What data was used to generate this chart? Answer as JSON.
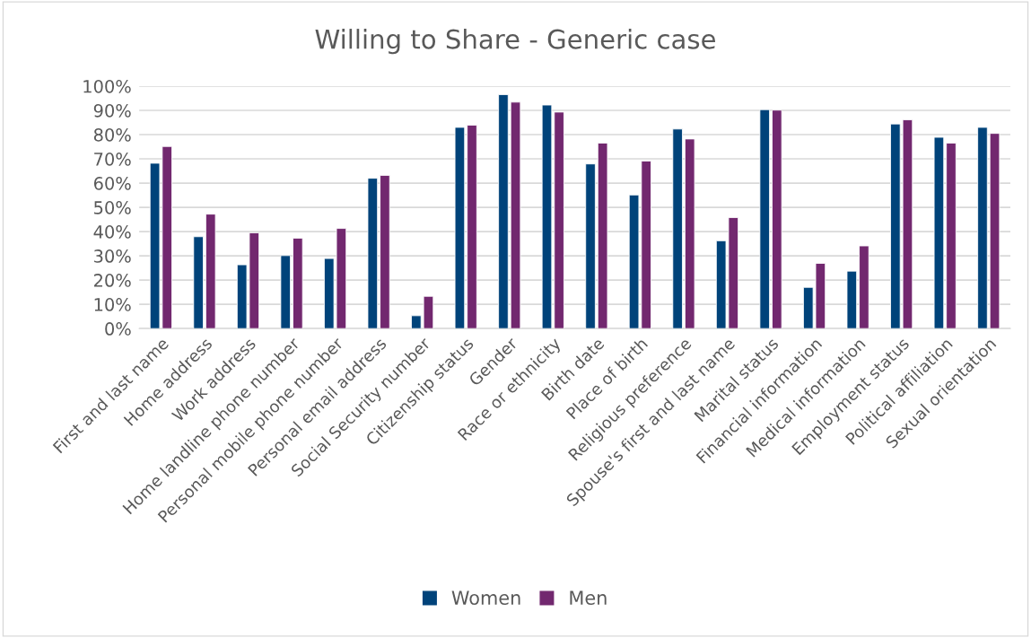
{
  "chart_data": {
    "type": "bar",
    "title": "Willing to Share - Generic case",
    "categories": [
      "First and last name",
      "Home address",
      "Work address",
      "Home landline phone number",
      "Personal mobile phone number",
      "Personal email address",
      "Social Security number",
      "Citizenship status",
      "Gender",
      "Race or ethnicity",
      "Birth date",
      "Place of birth",
      "Religious preference",
      "Spouse's first and last name",
      "Marital status",
      "Financial information",
      "Medical information",
      "Employment status",
      "Political affiliation",
      "Sexual orientation"
    ],
    "series": [
      {
        "name": "Women",
        "color": "#00437a",
        "values": [
          68.2,
          37.9,
          26.3,
          30.1,
          28.9,
          62.0,
          5.3,
          83.0,
          96.5,
          92.2,
          67.9,
          55.1,
          82.3,
          36.2,
          90.3,
          17.0,
          23.7,
          84.4,
          78.9,
          83.0
        ]
      },
      {
        "name": "Men",
        "color": "#72286f",
        "values": [
          75.1,
          47.2,
          39.5,
          37.3,
          41.3,
          63.2,
          13.3,
          83.9,
          93.4,
          89.3,
          76.5,
          69.1,
          78.2,
          45.8,
          90.1,
          26.9,
          34.1,
          86.1,
          76.5,
          80.5
        ]
      }
    ],
    "ylim": [
      0,
      100
    ],
    "yticks": [
      {
        "value": 0,
        "label": "0%"
      },
      {
        "value": 10,
        "label": "10%"
      },
      {
        "value": 20,
        "label": "20%"
      },
      {
        "value": 30,
        "label": "30%"
      },
      {
        "value": 40,
        "label": "40%"
      },
      {
        "value": 50,
        "label": "50%"
      },
      {
        "value": 60,
        "label": "60%"
      },
      {
        "value": 70,
        "label": "70%"
      },
      {
        "value": 80,
        "label": "80%"
      },
      {
        "value": 90,
        "label": "90%"
      },
      {
        "value": 100,
        "label": "100%"
      }
    ],
    "grid": "y",
    "legend": "bottom"
  }
}
